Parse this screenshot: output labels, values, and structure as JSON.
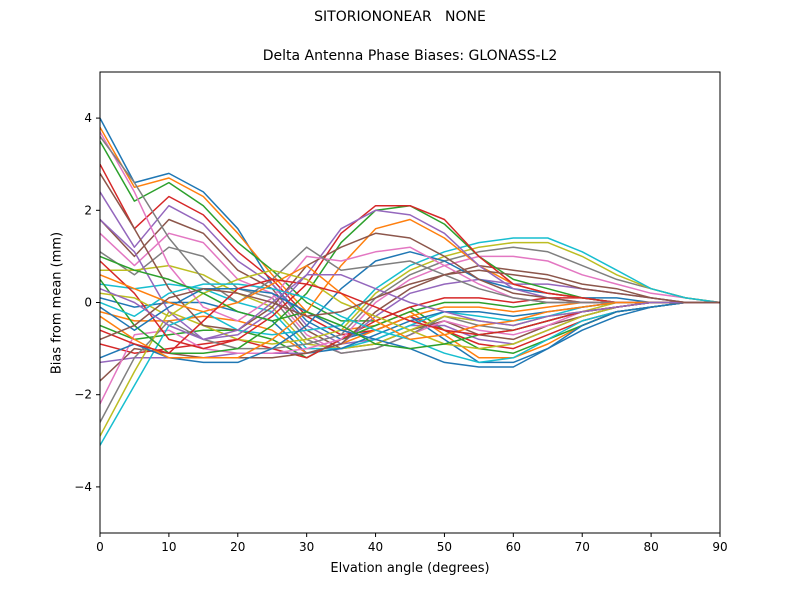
{
  "chart_data": {
    "type": "line",
    "suptitle": "SITORIONONEAR   NONE",
    "title": "Delta Antenna Phase Biases: GLONASS-L2",
    "xlabel": "Elvation angle (degrees)",
    "ylabel": "Bias from mean (mm)",
    "xlim": [
      0,
      90
    ],
    "ylim": [
      -5,
      5
    ],
    "xticks": [
      0,
      10,
      20,
      30,
      40,
      50,
      60,
      70,
      80,
      90
    ],
    "yticks": [
      -4,
      -2,
      0,
      2,
      4
    ],
    "xtick_labels": [
      "0",
      "10",
      "20",
      "30",
      "40",
      "50",
      "60",
      "70",
      "80",
      "90"
    ],
    "ytick_labels": [
      "−4",
      "−2",
      "0",
      "2",
      "4"
    ],
    "grid": false,
    "legend": "none",
    "x": [
      0,
      5,
      10,
      15,
      20,
      25,
      30,
      35,
      40,
      45,
      50,
      55,
      60,
      65,
      70,
      75,
      80,
      85,
      90
    ],
    "colors": [
      "#1f77b4",
      "#ff7f0e",
      "#2ca02c",
      "#d62728",
      "#9467bd",
      "#8c564b",
      "#e377c2",
      "#7f7f7f",
      "#bcbd22",
      "#17becf"
    ],
    "series": [
      {
        "values": [
          4.0,
          2.6,
          2.8,
          2.4,
          1.6,
          0.4,
          -0.4,
          -0.8,
          -0.6,
          -0.3,
          -0.8,
          -1.3,
          -1.3,
          -1.0,
          -0.6,
          -0.3,
          -0.1,
          0.0,
          0.0
        ]
      },
      {
        "values": [
          3.8,
          2.5,
          2.7,
          2.3,
          1.5,
          0.6,
          -0.2,
          -0.6,
          -0.5,
          -0.2,
          -0.7,
          -1.2,
          -1.2,
          -0.9,
          -0.5,
          -0.2,
          -0.1,
          0.0,
          0.0
        ]
      },
      {
        "values": [
          3.5,
          2.2,
          2.6,
          2.1,
          1.3,
          0.7,
          0.0,
          -0.4,
          -0.4,
          -0.1,
          -0.6,
          -1.0,
          -1.1,
          -0.8,
          -0.5,
          -0.2,
          -0.1,
          0.0,
          0.0
        ]
      },
      {
        "values": [
          3.0,
          1.6,
          2.3,
          1.9,
          1.1,
          0.5,
          -0.3,
          -0.7,
          -0.6,
          -0.3,
          -0.6,
          -0.9,
          -1.0,
          -0.7,
          -0.4,
          -0.2,
          -0.1,
          0.0,
          0.0
        ]
      },
      {
        "values": [
          2.4,
          1.2,
          2.1,
          1.7,
          0.9,
          0.4,
          -0.5,
          -0.9,
          -0.8,
          -0.5,
          -0.5,
          -0.8,
          -0.9,
          -0.6,
          -0.3,
          -0.1,
          0.0,
          0.0,
          0.0
        ]
      },
      {
        "values": [
          1.8,
          1.0,
          1.8,
          1.5,
          0.7,
          0.3,
          -0.6,
          -1.0,
          -0.9,
          -0.6,
          -0.4,
          -0.7,
          -0.8,
          -0.5,
          -0.3,
          -0.1,
          0.0,
          0.0,
          0.0
        ]
      },
      {
        "values": [
          1.5,
          0.8,
          1.5,
          1.3,
          0.5,
          0.2,
          -0.7,
          -1.1,
          -1.0,
          -0.7,
          -0.4,
          -0.6,
          -0.7,
          -0.5,
          -0.2,
          -0.1,
          0.0,
          0.0,
          0.0
        ]
      },
      {
        "values": [
          1.1,
          0.6,
          1.2,
          1.0,
          0.3,
          0.1,
          -0.8,
          -1.1,
          -1.0,
          -0.7,
          -0.3,
          -0.5,
          -0.6,
          -0.4,
          -0.2,
          -0.1,
          0.0,
          0.0,
          0.0
        ]
      },
      {
        "values": [
          0.7,
          0.7,
          0.8,
          0.6,
          0.2,
          -0.1,
          -0.9,
          -1.0,
          -0.9,
          -0.6,
          -0.3,
          -0.4,
          -0.5,
          -0.3,
          -0.2,
          0.0,
          0.0,
          0.0,
          0.0
        ]
      },
      {
        "values": [
          0.4,
          0.3,
          0.4,
          0.3,
          0.0,
          -0.2,
          -1.0,
          -1.0,
          -0.8,
          -0.5,
          -0.2,
          -0.3,
          -0.4,
          -0.3,
          -0.1,
          0.0,
          0.0,
          0.0,
          0.0
        ]
      },
      {
        "values": [
          0.1,
          -0.1,
          0.0,
          0.0,
          -0.2,
          -0.4,
          -1.1,
          -1.0,
          -0.7,
          -0.4,
          -0.2,
          -0.2,
          -0.3,
          -0.2,
          -0.1,
          0.0,
          0.0,
          0.0,
          0.0
        ]
      },
      {
        "values": [
          -0.2,
          -0.4,
          -0.4,
          -0.3,
          -0.4,
          -0.6,
          -1.1,
          -0.9,
          -0.6,
          -0.3,
          -0.1,
          -0.1,
          -0.2,
          -0.1,
          0.0,
          0.0,
          0.0,
          0.0,
          0.0
        ]
      },
      {
        "values": [
          -0.5,
          -0.8,
          -0.7,
          -0.6,
          -0.6,
          -0.8,
          -1.2,
          -0.8,
          -0.5,
          -0.2,
          0.0,
          0.0,
          -0.1,
          0.0,
          0.0,
          0.0,
          0.0,
          0.0,
          0.0
        ]
      },
      {
        "values": [
          -0.9,
          -1.1,
          -1.0,
          -0.9,
          -0.8,
          -1.0,
          -1.2,
          -0.8,
          -0.4,
          -0.1,
          0.1,
          0.1,
          0.0,
          0.1,
          0.1,
          0.0,
          0.0,
          0.0,
          0.0
        ]
      },
      {
        "values": [
          -1.3,
          -1.2,
          -1.2,
          -1.2,
          -1.1,
          -1.1,
          -1.1,
          -0.9,
          -0.3,
          0.2,
          0.4,
          0.5,
          0.4,
          0.4,
          0.3,
          0.2,
          0.1,
          0.0,
          0.0
        ]
      },
      {
        "values": [
          -1.7,
          -1.0,
          -1.1,
          -1.2,
          -1.2,
          -1.2,
          -1.1,
          -0.9,
          -0.2,
          0.3,
          0.6,
          0.8,
          0.7,
          0.6,
          0.4,
          0.3,
          0.1,
          0.0,
          0.0
        ]
      },
      {
        "values": [
          -2.2,
          -0.7,
          -0.6,
          -1.0,
          -1.1,
          -1.1,
          -1.0,
          -0.8,
          0.0,
          0.5,
          0.8,
          1.0,
          1.0,
          0.9,
          0.6,
          0.4,
          0.2,
          0.1,
          0.0
        ]
      },
      {
        "values": [
          -2.6,
          -1.2,
          -0.4,
          -0.8,
          -1.0,
          -1.0,
          -0.9,
          -0.7,
          0.1,
          0.6,
          0.9,
          1.1,
          1.2,
          1.1,
          0.8,
          0.5,
          0.3,
          0.1,
          0.0
        ]
      },
      {
        "values": [
          -2.9,
          -1.5,
          -0.2,
          -0.5,
          -0.8,
          -0.9,
          -0.8,
          -0.6,
          0.2,
          0.7,
          1.0,
          1.2,
          1.3,
          1.3,
          1.0,
          0.6,
          0.3,
          0.1,
          0.0
        ]
      },
      {
        "values": [
          -3.1,
          -1.8,
          -0.5,
          -0.2,
          -0.6,
          -0.7,
          -0.6,
          -0.5,
          0.3,
          0.8,
          1.1,
          1.3,
          1.4,
          1.4,
          1.1,
          0.7,
          0.3,
          0.1,
          0.0
        ]
      },
      {
        "values": [
          -1.2,
          -0.9,
          -1.2,
          -1.3,
          -1.3,
          -1.0,
          -0.5,
          0.3,
          0.9,
          1.1,
          0.9,
          0.5,
          0.3,
          0.2,
          0.1,
          0.1,
          0.0,
          0.0,
          0.0
        ]
      },
      {
        "values": [
          -0.3,
          -0.8,
          -1.2,
          -1.2,
          -1.2,
          -0.8,
          -0.2,
          0.8,
          1.6,
          1.8,
          1.4,
          0.8,
          0.4,
          0.2,
          0.1,
          0.0,
          0.0,
          0.0,
          0.0
        ]
      },
      {
        "values": [
          0.5,
          -0.5,
          -1.1,
          -1.1,
          -1.0,
          -0.5,
          0.2,
          1.3,
          2.0,
          2.1,
          1.7,
          1.0,
          0.5,
          0.3,
          0.1,
          0.0,
          0.0,
          0.0,
          0.0
        ]
      },
      {
        "values": [
          0.9,
          0.2,
          -0.8,
          -1.0,
          -0.8,
          -0.3,
          0.4,
          1.5,
          2.1,
          2.1,
          1.8,
          1.0,
          0.4,
          0.2,
          0.1,
          0.0,
          0.0,
          0.0,
          0.0
        ]
      },
      {
        "values": [
          1.8,
          1.1,
          -0.2,
          -0.8,
          -0.7,
          -0.2,
          0.6,
          1.6,
          2.0,
          1.9,
          1.5,
          0.8,
          0.3,
          0.1,
          0.0,
          0.0,
          0.0,
          0.0,
          0.0
        ]
      },
      {
        "values": [
          2.8,
          1.6,
          0.3,
          -0.5,
          -0.6,
          -0.1,
          0.8,
          1.2,
          1.5,
          1.4,
          1.0,
          0.5,
          0.2,
          0.1,
          0.0,
          0.0,
          0.0,
          0.0,
          0.0
        ]
      },
      {
        "values": [
          3.7,
          2.4,
          0.8,
          -0.1,
          -0.4,
          0.1,
          1.0,
          0.9,
          1.1,
          1.2,
          0.8,
          0.4,
          0.1,
          0.0,
          0.0,
          0.0,
          0.0,
          0.0,
          0.0
        ]
      },
      {
        "values": [
          3.6,
          2.6,
          1.4,
          0.5,
          0.0,
          0.5,
          1.2,
          0.7,
          0.8,
          0.9,
          0.6,
          0.3,
          0.1,
          0.0,
          0.0,
          0.0,
          0.0,
          0.0,
          0.0
        ]
      },
      {
        "values": [
          0.2,
          0.1,
          -0.3,
          0.2,
          0.5,
          0.7,
          0.5,
          0.0,
          -0.3,
          -0.6,
          -0.9,
          -1.0,
          -0.9,
          -0.6,
          -0.3,
          -0.1,
          0.0,
          0.0,
          0.0
        ]
      },
      {
        "values": [
          0.0,
          -0.3,
          0.2,
          0.4,
          0.4,
          0.3,
          0.1,
          -0.3,
          -0.6,
          -0.8,
          -1.1,
          -1.3,
          -1.2,
          -0.8,
          -0.4,
          -0.2,
          -0.1,
          0.0,
          0.0
        ]
      },
      {
        "values": [
          -0.1,
          -0.6,
          -0.1,
          0.3,
          0.3,
          0.2,
          -0.2,
          -0.6,
          -0.8,
          -1.0,
          -1.3,
          -1.4,
          -1.4,
          -1.0,
          -0.5,
          -0.2,
          -0.1,
          0.0,
          0.0
        ]
      },
      {
        "values": [
          0.6,
          0.3,
          0.0,
          -0.2,
          0.0,
          0.4,
          0.8,
          0.2,
          -0.4,
          -0.8,
          -0.7,
          -0.5,
          -0.4,
          -0.2,
          -0.1,
          0.0,
          0.0,
          0.0,
          0.0
        ]
      },
      {
        "values": [
          1.0,
          0.7,
          0.5,
          0.2,
          -0.2,
          -0.4,
          -0.2,
          -0.5,
          -0.9,
          -1.0,
          -0.9,
          -0.7,
          -0.6,
          -0.4,
          -0.2,
          -0.1,
          0.0,
          0.0,
          0.0
        ]
      },
      {
        "values": [
          -0.6,
          -0.9,
          -1.1,
          -0.4,
          0.3,
          0.5,
          0.4,
          0.2,
          -0.1,
          -0.4,
          -0.6,
          -0.7,
          -0.6,
          -0.4,
          -0.2,
          -0.1,
          0.0,
          0.0,
          0.0
        ]
      },
      {
        "values": [
          0.3,
          0.0,
          -0.5,
          -0.8,
          -0.6,
          0.0,
          0.6,
          0.6,
          0.3,
          0.0,
          -0.2,
          -0.4,
          -0.5,
          -0.3,
          -0.2,
          -0.1,
          0.0,
          0.0,
          0.0
        ]
      },
      {
        "values": [
          -0.8,
          -0.5,
          0.1,
          0.3,
          0.2,
          0.0,
          -0.3,
          -0.2,
          0.1,
          0.4,
          0.6,
          0.7,
          0.6,
          0.5,
          0.3,
          0.2,
          0.1,
          0.0,
          0.0
        ]
      }
    ]
  }
}
